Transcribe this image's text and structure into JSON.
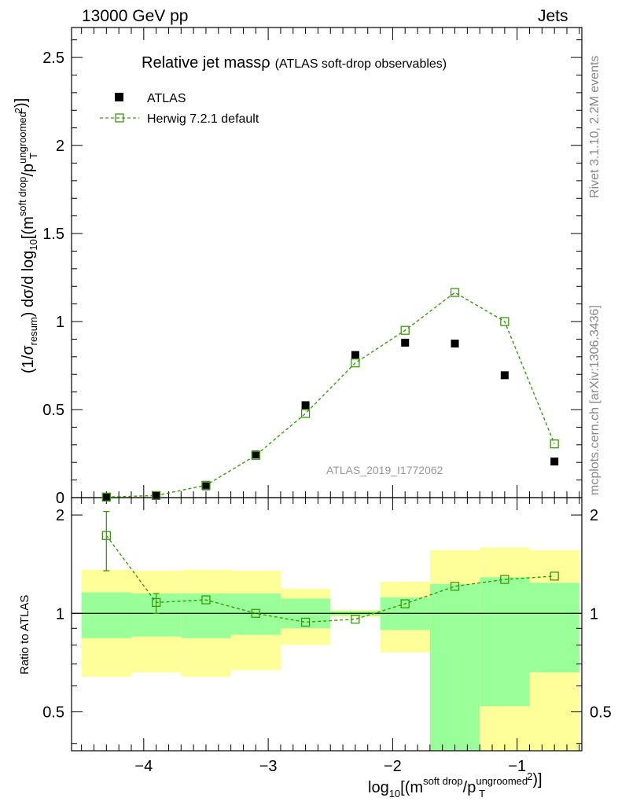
{
  "header": {
    "left": "13000 GeV pp",
    "right": "Jets"
  },
  "side_labels": {
    "rivet": "Rivet 3.1.10,  2.2M events",
    "mcplots": "mcplots.cern.ch [arXiv:1306.3436]"
  },
  "watermark": "ATLAS_2019_I1772062",
  "main_title": "Relative jet massρ",
  "main_subtitle": "(ATLAS soft-drop observables)",
  "legend": {
    "data_label": "ATLAS",
    "mc_label": "Herwig 7.2.1 default"
  },
  "labels": {
    "y_main_prefix": "(1/σ",
    "y_main_resum": "resum",
    "y_main_mid": ") dσ/d log",
    "sub10": "10",
    "bracket_m": "[(m",
    "soft_drop": "soft drop",
    "slash_p": "/p",
    "ungroomed": "ungroomed",
    "T": "T",
    "sq": "2",
    "close": ")]",
    "x_prefix": "log",
    "y_ratio": "Ratio to ATLAS"
  },
  "colors": {
    "mc": "#3a9a0a",
    "band_inner": "#99ff99",
    "band_outer": "#ffff99",
    "data": "#000000"
  },
  "chart_data": [
    {
      "type": "scatter",
      "panel": "main",
      "x": [
        -4.3,
        -3.9,
        -3.5,
        -3.1,
        -2.7,
        -2.3,
        -1.9,
        -1.5,
        -1.1,
        -0.7
      ],
      "x_edges": [
        -4.5,
        -4.1,
        -3.7,
        -3.3,
        -2.9,
        -2.5,
        -2.1,
        -1.7,
        -1.3,
        -0.9,
        -0.5
      ],
      "series": [
        {
          "name": "ATLAS",
          "values": [
            0.005,
            0.012,
            0.065,
            0.245,
            0.525,
            0.81,
            0.88,
            0.875,
            0.695,
            0.205
          ]
        },
        {
          "name": "Herwig 7.2.1 default",
          "values": [
            0.003,
            0.012,
            0.07,
            0.24,
            0.478,
            0.765,
            0.95,
            1.165,
            1.0,
            0.305
          ]
        }
      ],
      "xlim": [
        -4.58,
        -0.48
      ],
      "ylim": [
        0,
        2.67
      ],
      "y_ticks": [
        0,
        0.5,
        1,
        1.5,
        2,
        2.5
      ],
      "y_tick_labels": [
        "0",
        "0.5",
        "1",
        "1.5",
        "2",
        "2.5"
      ]
    },
    {
      "type": "scatter",
      "panel": "ratio",
      "x": [
        -4.3,
        -3.9,
        -3.5,
        -3.1,
        -2.7,
        -2.3,
        -1.9,
        -1.5,
        -1.1,
        -0.7
      ],
      "x_edges": [
        -4.5,
        -4.1,
        -3.7,
        -3.3,
        -2.9,
        -2.5,
        -2.1,
        -1.7,
        -1.3,
        -0.9,
        -0.5
      ],
      "ratio": [
        1.73,
        1.08,
        1.1,
        1.0,
        0.94,
        0.96,
        1.07,
        1.21,
        1.27,
        1.3
      ],
      "ratio_err_low": [
        1.35,
        1.0,
        1.08,
        0.99,
        0.935,
        0.955,
        1.065,
        1.2,
        1.26,
        1.29
      ],
      "ratio_err_high": [
        2.05,
        1.15,
        1.13,
        1.01,
        0.945,
        0.965,
        1.075,
        1.22,
        1.28,
        1.31
      ],
      "band_inner_low": [
        0.84,
        0.85,
        0.84,
        0.86,
        0.9,
        0.985,
        0.89,
        0.33,
        0.52,
        0.66
      ],
      "band_inner_high": [
        1.16,
        1.15,
        1.15,
        1.15,
        1.11,
        1.015,
        1.12,
        1.23,
        1.29,
        1.24
      ],
      "band_outer_low": [
        0.64,
        0.66,
        0.64,
        0.67,
        0.8,
        0.975,
        0.76,
        0.33,
        0.33,
        0.33
      ],
      "band_outer_high": [
        1.36,
        1.35,
        1.36,
        1.35,
        1.19,
        1.025,
        1.25,
        1.56,
        1.59,
        1.56
      ],
      "xlim": [
        -4.58,
        -0.48
      ],
      "ylim_log": [
        0.38,
        2.26
      ],
      "y_ticks": [
        0.5,
        1,
        2
      ],
      "y_tick_labels": [
        "0.5",
        "1",
        "2"
      ],
      "x_ticks": [
        -4,
        -3,
        -2,
        -1
      ],
      "x_tick_labels": [
        "−4",
        "−3",
        "−2",
        "−1"
      ]
    }
  ]
}
